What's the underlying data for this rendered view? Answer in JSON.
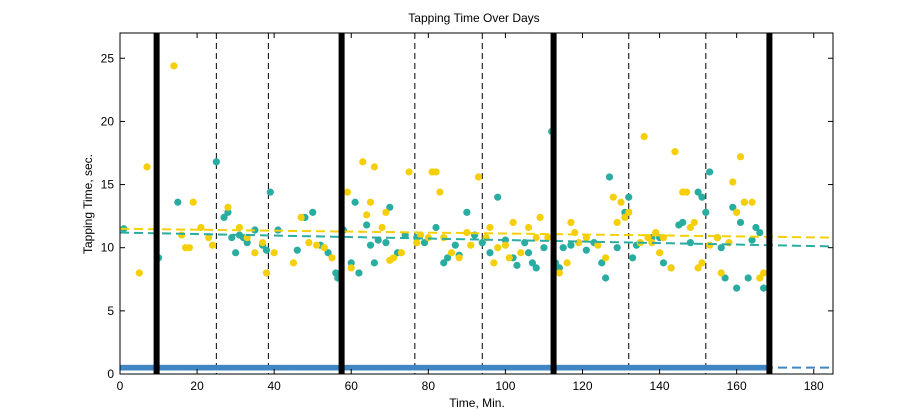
{
  "chart_data": {
    "type": "scatter",
    "title": "Tapping Time Over Days",
    "xlabel": "Time, Min.",
    "ylabel": "Tapping Time, sec.",
    "xlim": [
      0,
      185
    ],
    "ylim": [
      0,
      27
    ],
    "xticks": [
      0,
      20,
      40,
      60,
      80,
      100,
      120,
      140,
      160,
      180
    ],
    "yticks": [
      0,
      5,
      10,
      15,
      20,
      25
    ],
    "grid": false,
    "colors": {
      "teal": "#2aada1",
      "gold": "#f5cf0a",
      "blue": "#3f86c3",
      "boundary": "#000000"
    },
    "boundaries_solid": [
      9.5,
      57.5,
      112.5,
      168.5
    ],
    "boundaries_dashed": [
      25,
      38.5,
      76.5,
      94,
      132,
      152
    ],
    "series": [
      {
        "color": "teal",
        "points": [
          [
            1,
            11.5
          ],
          [
            10,
            9.2
          ],
          [
            15,
            13.6
          ],
          [
            25,
            16.8
          ],
          [
            27,
            12.4
          ],
          [
            28,
            12.8
          ],
          [
            29,
            10.8
          ],
          [
            30,
            9.6
          ],
          [
            31,
            11.0
          ],
          [
            32,
            10.8
          ],
          [
            33,
            10.4
          ],
          [
            35,
            11.4
          ],
          [
            37,
            10.2
          ],
          [
            38,
            9.8
          ],
          [
            39,
            14.4
          ],
          [
            41,
            11.4
          ],
          [
            46,
            9.8
          ],
          [
            48,
            12.4
          ],
          [
            50,
            12.8
          ],
          [
            52,
            10.2
          ],
          [
            54,
            9.6
          ],
          [
            56,
            8.0
          ],
          [
            56.5,
            7.6
          ],
          [
            58,
            11.4
          ],
          [
            60,
            8.8
          ],
          [
            61,
            13.6
          ],
          [
            62,
            8.0
          ],
          [
            64,
            11.8
          ],
          [
            65,
            10.2
          ],
          [
            66,
            8.8
          ],
          [
            67,
            10.6
          ],
          [
            69,
            10.4
          ],
          [
            70,
            13.2
          ],
          [
            72,
            9.6
          ],
          [
            74,
            11.0
          ],
          [
            77,
            10.8
          ],
          [
            79,
            10.4
          ],
          [
            82,
            11.6
          ],
          [
            84,
            8.8
          ],
          [
            85,
            9.2
          ],
          [
            87,
            10.2
          ],
          [
            88,
            9.4
          ],
          [
            90,
            12.8
          ],
          [
            92,
            11.0
          ],
          [
            94,
            10.4
          ],
          [
            96,
            9.6
          ],
          [
            98,
            14.0
          ],
          [
            100,
            10.6
          ],
          [
            102,
            9.2
          ],
          [
            103,
            8.6
          ],
          [
            105,
            10.4
          ],
          [
            106,
            9.6
          ],
          [
            107,
            8.8
          ],
          [
            108,
            8.4
          ],
          [
            110,
            10.0
          ],
          [
            112,
            19.2
          ],
          [
            113,
            8.8
          ],
          [
            114,
            8.4
          ],
          [
            115,
            10.0
          ],
          [
            117,
            10.2
          ],
          [
            121,
            9.8
          ],
          [
            123,
            10.4
          ],
          [
            125,
            8.8
          ],
          [
            126,
            7.6
          ],
          [
            127,
            15.6
          ],
          [
            129,
            10.0
          ],
          [
            131,
            12.8
          ],
          [
            132,
            14.0
          ],
          [
            133,
            9.2
          ],
          [
            134,
            10.2
          ],
          [
            138,
            10.8
          ],
          [
            140,
            10.8
          ],
          [
            141,
            8.8
          ],
          [
            143,
            8.4
          ],
          [
            145,
            11.8
          ],
          [
            146,
            12.0
          ],
          [
            148,
            10.4
          ],
          [
            150,
            14.4
          ],
          [
            151,
            14.0
          ],
          [
            152,
            12.8
          ],
          [
            153,
            16.0
          ],
          [
            155,
            10.8
          ],
          [
            156,
            10.0
          ],
          [
            157,
            7.6
          ],
          [
            159,
            13.2
          ],
          [
            160,
            6.8
          ],
          [
            161,
            12.0
          ],
          [
            162,
            13.6
          ],
          [
            163,
            7.6
          ],
          [
            164,
            10.6
          ],
          [
            165,
            11.6
          ],
          [
            166,
            11.2
          ],
          [
            167,
            6.8
          ]
        ],
        "trend": [
          [
            0,
            11.2
          ],
          [
            185,
            10.1
          ]
        ]
      },
      {
        "color": "gold",
        "points": [
          [
            7,
            16.4
          ],
          [
            5,
            8.0
          ],
          [
            14,
            24.4
          ],
          [
            16,
            11.0
          ],
          [
            17,
            10.0
          ],
          [
            18,
            10.0
          ],
          [
            19,
            13.6
          ],
          [
            21,
            11.6
          ],
          [
            23,
            10.8
          ],
          [
            24,
            10.2
          ],
          [
            28,
            13.2
          ],
          [
            31,
            11.6
          ],
          [
            33,
            10.8
          ],
          [
            35,
            9.6
          ],
          [
            37,
            10.4
          ],
          [
            38,
            8.0
          ],
          [
            40,
            9.6
          ],
          [
            45,
            8.8
          ],
          [
            47,
            12.4
          ],
          [
            49,
            10.4
          ],
          [
            51,
            10.2
          ],
          [
            53,
            10.0
          ],
          [
            55,
            9.2
          ],
          [
            59,
            14.4
          ],
          [
            60,
            8.4
          ],
          [
            63,
            16.8
          ],
          [
            64,
            12.6
          ],
          [
            65,
            13.6
          ],
          [
            66,
            16.4
          ],
          [
            68,
            11.6
          ],
          [
            69,
            12.8
          ],
          [
            70,
            9.0
          ],
          [
            71,
            9.2
          ],
          [
            73,
            9.6
          ],
          [
            75,
            16.0
          ],
          [
            77,
            10.4
          ],
          [
            78,
            11.0
          ],
          [
            80,
            10.8
          ],
          [
            81,
            16.0
          ],
          [
            82,
            16.0
          ],
          [
            83,
            14.4
          ],
          [
            84,
            10.8
          ],
          [
            86,
            9.6
          ],
          [
            88,
            9.2
          ],
          [
            90,
            11.2
          ],
          [
            91,
            10.2
          ],
          [
            93,
            15.6
          ],
          [
            95,
            10.8
          ],
          [
            96,
            11.6
          ],
          [
            97,
            8.8
          ],
          [
            98,
            10.0
          ],
          [
            100,
            10.2
          ],
          [
            101,
            9.2
          ],
          [
            102,
            12.0
          ],
          [
            104,
            9.6
          ],
          [
            106,
            11.6
          ],
          [
            108,
            10.8
          ],
          [
            109,
            12.4
          ],
          [
            111,
            10.8
          ],
          [
            114,
            8.0
          ],
          [
            116,
            8.8
          ],
          [
            117,
            12.0
          ],
          [
            118,
            11.2
          ],
          [
            119,
            10.4
          ],
          [
            121,
            10.8
          ],
          [
            124,
            10.2
          ],
          [
            126,
            9.2
          ],
          [
            128,
            14.0
          ],
          [
            129,
            12.0
          ],
          [
            130,
            13.6
          ],
          [
            131,
            12.4
          ],
          [
            132,
            12.8
          ],
          [
            135,
            10.4
          ],
          [
            136,
            18.8
          ],
          [
            137,
            10.8
          ],
          [
            138,
            10.4
          ],
          [
            139,
            11.2
          ],
          [
            140,
            9.6
          ],
          [
            141,
            10.8
          ],
          [
            143,
            8.4
          ],
          [
            144,
            17.6
          ],
          [
            146,
            14.4
          ],
          [
            147,
            14.4
          ],
          [
            148,
            11.6
          ],
          [
            149,
            12.0
          ],
          [
            150,
            8.4
          ],
          [
            151,
            8.8
          ],
          [
            153,
            10.2
          ],
          [
            155,
            10.8
          ],
          [
            156,
            8.0
          ],
          [
            158,
            10.4
          ],
          [
            159,
            15.2
          ],
          [
            160,
            12.8
          ],
          [
            161,
            17.2
          ],
          [
            162,
            13.6
          ],
          [
            164,
            13.6
          ],
          [
            166,
            7.6
          ],
          [
            167,
            8.0
          ]
        ],
        "trend": [
          [
            0,
            11.5
          ],
          [
            185,
            10.8
          ]
        ]
      },
      {
        "color": "blue",
        "baseline_y": 0.5,
        "x_range": [
          0,
          168
        ],
        "x_step": 0.75,
        "trend": [
          [
            0,
            0.5
          ],
          [
            185,
            0.5
          ]
        ]
      }
    ]
  }
}
